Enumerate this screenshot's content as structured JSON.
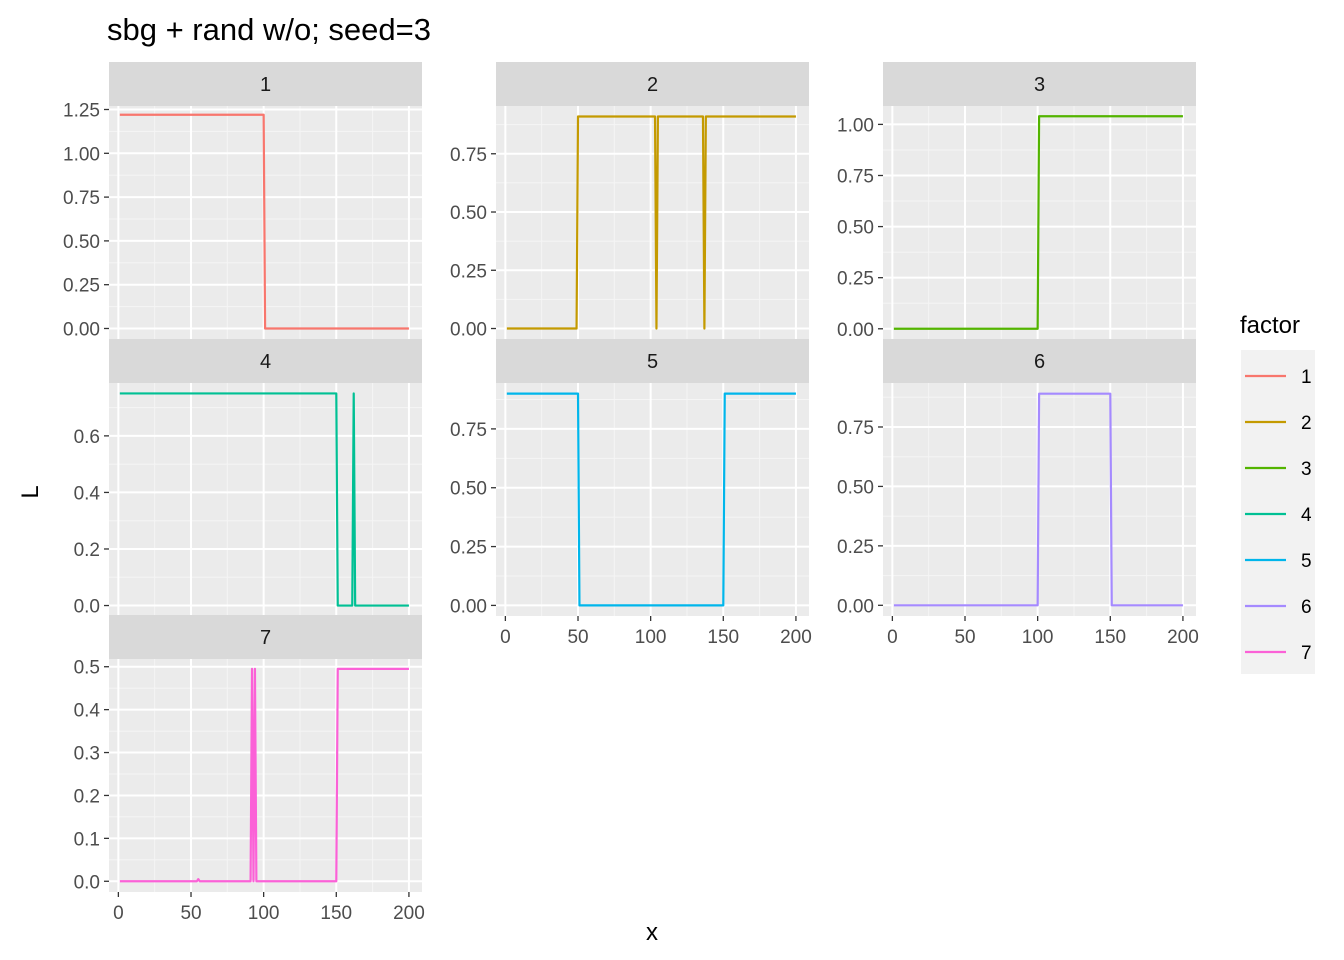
{
  "chart_data": {
    "type": "line",
    "title": "sbg + rand  w/o; seed=3",
    "xlabel": "x",
    "ylabel": "L",
    "facet_layout": "3 columns, free y scales",
    "grid": true,
    "legend": {
      "title": "factor",
      "position": "right"
    },
    "xlim": [
      0,
      200
    ],
    "x_ticks": [
      0,
      50,
      100,
      150,
      200
    ],
    "panels": [
      {
        "strip": "1",
        "color": "#F8766D",
        "ylim": [
          -0.06,
          1.27
        ],
        "y_ticks": [
          "0.00",
          "0.25",
          "0.50",
          "0.75",
          "1.00",
          "1.25"
        ],
        "points": [
          [
            1,
            1.22
          ],
          [
            100,
            1.22
          ],
          [
            101,
            0.0
          ],
          [
            200,
            0.0
          ]
        ]
      },
      {
        "strip": "2",
        "color": "#C49A00",
        "ylim": [
          -0.045,
          0.955
        ],
        "y_ticks": [
          "0.00",
          "0.25",
          "0.50",
          "0.75"
        ],
        "points": [
          [
            1,
            0.0
          ],
          [
            49,
            0.0
          ],
          [
            50,
            0.91
          ],
          [
            103,
            0.91
          ],
          [
            104,
            0.0
          ],
          [
            105,
            0.91
          ],
          [
            136,
            0.91
          ],
          [
            137,
            0.0
          ],
          [
            138,
            0.91
          ],
          [
            200,
            0.91
          ]
        ]
      },
      {
        "strip": "3",
        "color": "#53B400",
        "ylim": [
          -0.05,
          1.09
        ],
        "y_ticks": [
          "0.00",
          "0.25",
          "0.50",
          "0.75",
          "1.00"
        ],
        "points": [
          [
            1,
            0.0
          ],
          [
            100,
            0.0
          ],
          [
            101,
            1.04
          ],
          [
            200,
            1.04
          ]
        ]
      },
      {
        "strip": "4",
        "color": "#00C094",
        "ylim": [
          -0.037,
          0.787
        ],
        "y_ticks": [
          "0.0",
          "0.2",
          "0.4",
          "0.6"
        ],
        "points": [
          [
            1,
            0.75
          ],
          [
            150,
            0.75
          ],
          [
            151,
            0.0
          ],
          [
            161,
            0.0
          ],
          [
            162,
            0.75
          ],
          [
            163,
            0.0
          ],
          [
            200,
            0.0
          ]
        ]
      },
      {
        "strip": "5",
        "color": "#00B6EB",
        "ylim": [
          -0.045,
          0.945
        ],
        "y_ticks": [
          "0.00",
          "0.25",
          "0.50",
          "0.75"
        ],
        "points": [
          [
            1,
            0.9
          ],
          [
            50,
            0.9
          ],
          [
            51,
            0.0
          ],
          [
            150,
            0.0
          ],
          [
            151,
            0.9
          ],
          [
            200,
            0.9
          ]
        ]
      },
      {
        "strip": "6",
        "color": "#A58AFF",
        "ylim": [
          -0.045,
          0.935
        ],
        "y_ticks": [
          "0.00",
          "0.25",
          "0.50",
          "0.75"
        ],
        "points": [
          [
            1,
            0.0
          ],
          [
            100,
            0.0
          ],
          [
            101,
            0.89
          ],
          [
            150,
            0.89
          ],
          [
            151,
            0.0
          ],
          [
            200,
            0.0
          ]
        ]
      },
      {
        "strip": "7",
        "color": "#FB61D7",
        "ylim": [
          -0.025,
          0.518
        ],
        "y_ticks": [
          "0.0",
          "0.1",
          "0.2",
          "0.3",
          "0.4",
          "0.5"
        ],
        "points": [
          [
            1,
            0.0
          ],
          [
            54,
            0.0
          ],
          [
            55,
            0.005
          ],
          [
            56,
            0.0
          ],
          [
            91,
            0.0
          ],
          [
            92,
            0.495
          ],
          [
            93,
            0.0
          ],
          [
            94,
            0.495
          ],
          [
            95,
            0.0
          ],
          [
            150,
            0.0
          ],
          [
            151,
            0.495
          ],
          [
            200,
            0.495
          ]
        ]
      }
    ]
  }
}
